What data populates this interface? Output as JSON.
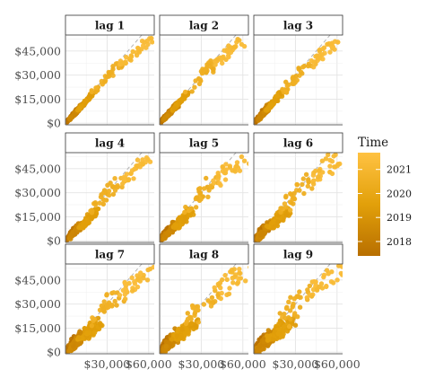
{
  "chart_data": {
    "type": "scatter",
    "facets": [
      "lag 1",
      "lag 2",
      "lag 3",
      "lag 4",
      "lag 5",
      "lag 6",
      "lag 7",
      "lag 8",
      "lag 9"
    ],
    "x_ticks": [
      "$30,000",
      "$60,000"
    ],
    "x_tick_values": [
      30000,
      60000
    ],
    "y_ticks": [
      "$0",
      "$15,000",
      "$30,000",
      "$45,000"
    ],
    "y_tick_values": [
      0,
      15000,
      30000,
      45000
    ],
    "xlim": [
      0,
      64000
    ],
    "ylim": [
      -1000,
      55000
    ],
    "legend": {
      "title": "Time",
      "labels": [
        "2021",
        "2020",
        "2019",
        "2018"
      ],
      "label_values": [
        2021,
        2020,
        2019,
        2018
      ],
      "range": [
        2017.4,
        2021.7
      ],
      "placement": "right",
      "color_low": "#b86f00",
      "color_mid": "#e2a00a",
      "color_high": "#ffc242"
    },
    "reference_line": "y = x (dashed)",
    "grid": true,
    "series": [
      {
        "year": 2017.6,
        "x_range": [
          500,
          9000
        ],
        "y_range": [
          400,
          8500
        ]
      },
      {
        "year": 2018.5,
        "x_range": [
          3000,
          13000
        ],
        "y_range": [
          2500,
          12500
        ]
      },
      {
        "year": 2019.5,
        "x_range": [
          9000,
          20000
        ],
        "y_range": [
          8000,
          19000
        ]
      },
      {
        "year": 2020.5,
        "x_range": [
          20000,
          40000
        ],
        "y_range": [
          19000,
          38000
        ]
      },
      {
        "year": 2021.2,
        "x_range": [
          40000,
          60000
        ],
        "y_range": [
          36000,
          52000
        ]
      }
    ]
  }
}
